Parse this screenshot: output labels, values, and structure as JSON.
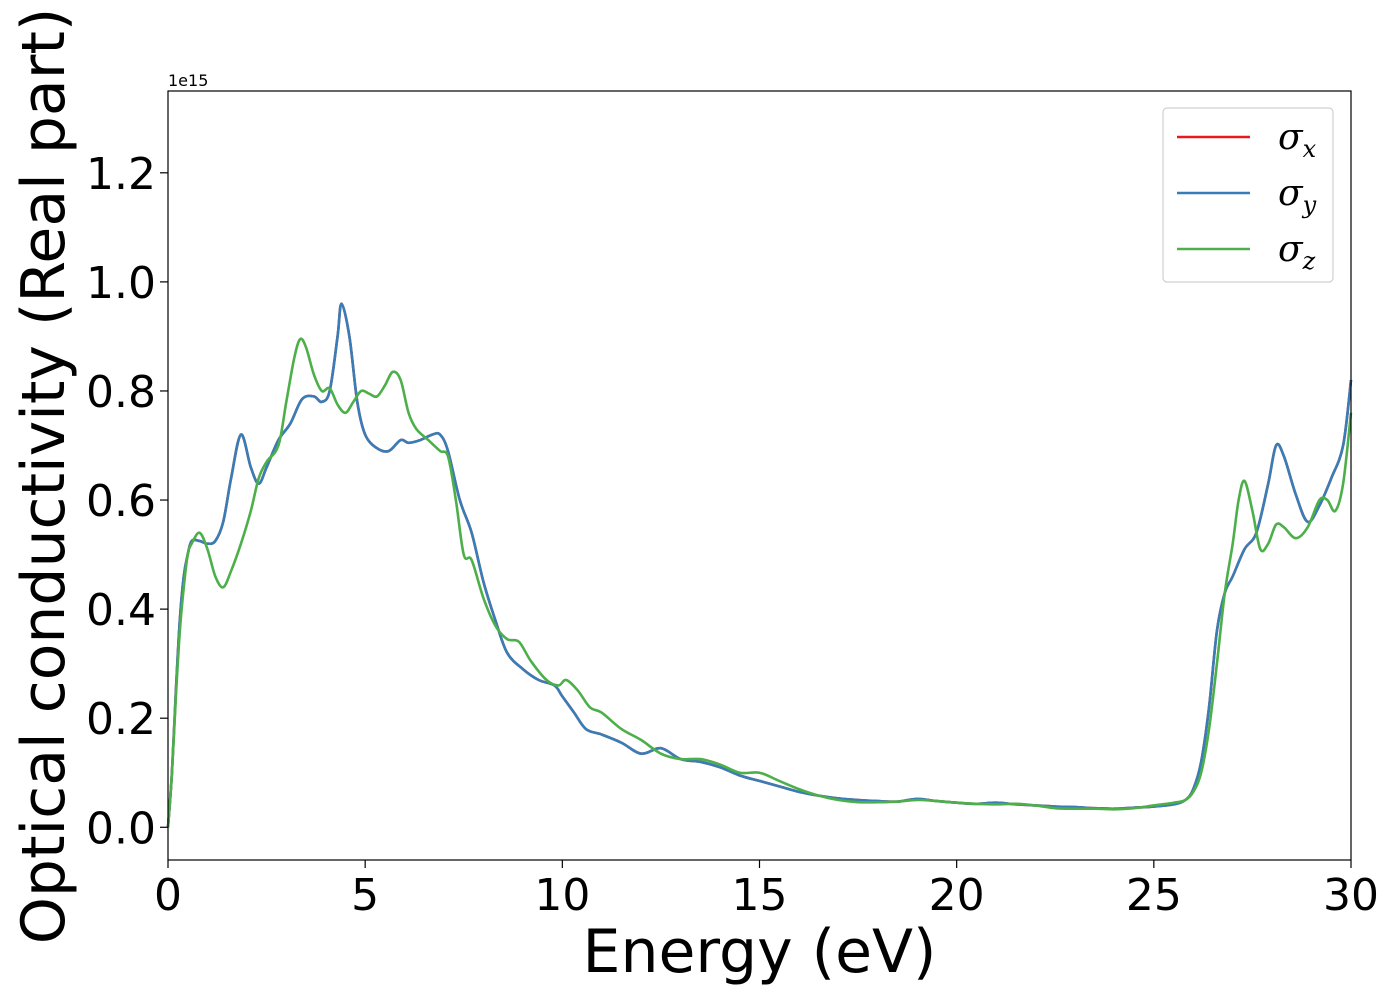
{
  "chart_data": {
    "type": "line",
    "title": "",
    "xlabel": "Energy (eV)",
    "ylabel": "Optical conductivity (Real part)",
    "y_offset_text": "1e15",
    "y_scale": 1000000000000000.0,
    "xlim": [
      0,
      30
    ],
    "ylim": [
      -0.06,
      1.35
    ],
    "xticks": [
      0,
      5,
      10,
      15,
      20,
      25,
      30
    ],
    "xtick_labels": [
      "0",
      "5",
      "10",
      "15",
      "20",
      "25",
      "30"
    ],
    "yticks": [
      0.0,
      0.2,
      0.4,
      0.6,
      0.8,
      1.0,
      1.2
    ],
    "ytick_labels": [
      "0.0",
      "0.2",
      "0.4",
      "0.6",
      "0.8",
      "1.0",
      "1.2"
    ],
    "grid": false,
    "legend_position": "top-right",
    "legend": [
      {
        "symbol": "σ",
        "sub": "x",
        "color": "#e41a1c"
      },
      {
        "symbol": "σ",
        "sub": "y",
        "color": "#377eb8"
      },
      {
        "symbol": "σ",
        "sub": "z",
        "color": "#4daf4a"
      }
    ],
    "series": [
      {
        "color": "#e41a1c",
        "x": [
          0,
          0.1,
          0.2,
          0.3,
          0.4,
          0.5,
          0.6,
          0.8,
          1.0,
          1.2,
          1.4,
          1.6,
          1.85,
          2.1,
          2.3,
          2.5,
          2.8,
          3.1,
          3.4,
          3.7,
          3.9,
          4.1,
          4.3,
          4.4,
          4.6,
          4.8,
          5.0,
          5.3,
          5.6,
          5.9,
          6.1,
          6.4,
          6.7,
          6.9,
          7.1,
          7.4,
          7.7,
          8.0,
          8.3,
          8.6,
          9.0,
          9.4,
          9.8,
          10.0,
          10.3,
          10.6,
          11.0,
          11.5,
          12.0,
          12.5,
          13.0,
          13.5,
          14.0,
          14.5,
          15.0,
          15.5,
          16.0,
          16.5,
          17.0,
          17.5,
          18.0,
          18.5,
          19.0,
          19.5,
          20.0,
          20.5,
          21.0,
          21.5,
          22.0,
          22.5,
          23.0,
          23.5,
          24.0,
          24.5,
          25.0,
          25.5,
          25.8,
          26.0,
          26.2,
          26.4,
          26.6,
          26.8,
          27.0,
          27.3,
          27.6,
          27.9,
          28.1,
          28.3,
          28.6,
          28.9,
          29.2,
          29.5,
          29.8,
          30.0
        ],
        "values": [
          0.0,
          0.1,
          0.25,
          0.38,
          0.46,
          0.5,
          0.525,
          0.525,
          0.52,
          0.525,
          0.56,
          0.64,
          0.72,
          0.66,
          0.63,
          0.66,
          0.71,
          0.74,
          0.785,
          0.79,
          0.78,
          0.8,
          0.9,
          0.96,
          0.9,
          0.78,
          0.72,
          0.695,
          0.69,
          0.71,
          0.705,
          0.71,
          0.72,
          0.72,
          0.69,
          0.6,
          0.54,
          0.45,
          0.38,
          0.32,
          0.29,
          0.27,
          0.26,
          0.24,
          0.21,
          0.18,
          0.17,
          0.155,
          0.135,
          0.145,
          0.125,
          0.12,
          0.11,
          0.095,
          0.085,
          0.075,
          0.065,
          0.058,
          0.053,
          0.05,
          0.048,
          0.047,
          0.052,
          0.048,
          0.045,
          0.043,
          0.045,
          0.042,
          0.04,
          0.038,
          0.037,
          0.035,
          0.034,
          0.036,
          0.038,
          0.042,
          0.05,
          0.07,
          0.12,
          0.22,
          0.36,
          0.43,
          0.46,
          0.51,
          0.54,
          0.63,
          0.7,
          0.68,
          0.61,
          0.56,
          0.59,
          0.64,
          0.7,
          0.82
        ]
      },
      {
        "color": "#377eb8",
        "x": [
          0,
          0.1,
          0.2,
          0.3,
          0.4,
          0.5,
          0.6,
          0.8,
          1.0,
          1.2,
          1.4,
          1.6,
          1.85,
          2.1,
          2.3,
          2.5,
          2.8,
          3.1,
          3.4,
          3.7,
          3.9,
          4.1,
          4.3,
          4.4,
          4.6,
          4.8,
          5.0,
          5.3,
          5.6,
          5.9,
          6.1,
          6.4,
          6.7,
          6.9,
          7.1,
          7.4,
          7.7,
          8.0,
          8.3,
          8.6,
          9.0,
          9.4,
          9.8,
          10.0,
          10.3,
          10.6,
          11.0,
          11.5,
          12.0,
          12.5,
          13.0,
          13.5,
          14.0,
          14.5,
          15.0,
          15.5,
          16.0,
          16.5,
          17.0,
          17.5,
          18.0,
          18.5,
          19.0,
          19.5,
          20.0,
          20.5,
          21.0,
          21.5,
          22.0,
          22.5,
          23.0,
          23.5,
          24.0,
          24.5,
          25.0,
          25.5,
          25.8,
          26.0,
          26.2,
          26.4,
          26.6,
          26.8,
          27.0,
          27.3,
          27.6,
          27.9,
          28.1,
          28.3,
          28.6,
          28.9,
          29.2,
          29.5,
          29.8,
          30.0
        ],
        "values": [
          0.0,
          0.1,
          0.25,
          0.38,
          0.46,
          0.5,
          0.525,
          0.525,
          0.52,
          0.525,
          0.56,
          0.64,
          0.72,
          0.66,
          0.63,
          0.66,
          0.71,
          0.74,
          0.785,
          0.79,
          0.78,
          0.8,
          0.9,
          0.96,
          0.9,
          0.78,
          0.72,
          0.695,
          0.69,
          0.71,
          0.705,
          0.71,
          0.72,
          0.72,
          0.69,
          0.6,
          0.54,
          0.45,
          0.38,
          0.32,
          0.29,
          0.27,
          0.26,
          0.24,
          0.21,
          0.18,
          0.17,
          0.155,
          0.135,
          0.145,
          0.125,
          0.12,
          0.11,
          0.095,
          0.085,
          0.075,
          0.065,
          0.058,
          0.053,
          0.05,
          0.048,
          0.047,
          0.052,
          0.048,
          0.045,
          0.043,
          0.045,
          0.042,
          0.04,
          0.038,
          0.037,
          0.035,
          0.034,
          0.036,
          0.038,
          0.042,
          0.05,
          0.07,
          0.12,
          0.22,
          0.36,
          0.43,
          0.46,
          0.51,
          0.54,
          0.63,
          0.7,
          0.68,
          0.61,
          0.56,
          0.59,
          0.64,
          0.7,
          0.82
        ]
      },
      {
        "color": "#4daf4a",
        "x": [
          0,
          0.1,
          0.2,
          0.3,
          0.4,
          0.5,
          0.6,
          0.8,
          1.0,
          1.2,
          1.4,
          1.6,
          1.85,
          2.1,
          2.3,
          2.5,
          2.8,
          3.0,
          3.2,
          3.35,
          3.5,
          3.7,
          3.9,
          4.1,
          4.3,
          4.5,
          4.7,
          4.9,
          5.1,
          5.3,
          5.5,
          5.7,
          5.9,
          6.1,
          6.3,
          6.6,
          6.9,
          7.1,
          7.3,
          7.5,
          7.7,
          8.0,
          8.3,
          8.6,
          8.9,
          9.2,
          9.6,
          9.9,
          10.1,
          10.4,
          10.7,
          11.0,
          11.5,
          12.0,
          12.5,
          13.0,
          13.5,
          14.0,
          14.5,
          15.0,
          15.5,
          16.0,
          16.5,
          17.0,
          17.5,
          18.0,
          18.5,
          19.0,
          19.5,
          20.0,
          20.5,
          21.0,
          21.5,
          22.0,
          22.5,
          23.0,
          23.5,
          24.0,
          24.5,
          25.0,
          25.5,
          25.8,
          26.0,
          26.2,
          26.4,
          26.6,
          26.8,
          27.0,
          27.15,
          27.3,
          27.5,
          27.7,
          27.9,
          28.1,
          28.3,
          28.6,
          28.9,
          29.2,
          29.4,
          29.6,
          29.8,
          30.0
        ],
        "values": [
          0.0,
          0.1,
          0.24,
          0.36,
          0.44,
          0.5,
          0.52,
          0.54,
          0.51,
          0.46,
          0.44,
          0.47,
          0.52,
          0.58,
          0.64,
          0.67,
          0.7,
          0.78,
          0.86,
          0.895,
          0.88,
          0.83,
          0.8,
          0.805,
          0.775,
          0.76,
          0.78,
          0.8,
          0.795,
          0.79,
          0.81,
          0.835,
          0.82,
          0.76,
          0.73,
          0.71,
          0.69,
          0.68,
          0.6,
          0.5,
          0.49,
          0.42,
          0.37,
          0.345,
          0.34,
          0.305,
          0.27,
          0.26,
          0.27,
          0.25,
          0.22,
          0.21,
          0.18,
          0.16,
          0.135,
          0.125,
          0.125,
          0.115,
          0.1,
          0.1,
          0.085,
          0.07,
          0.058,
          0.05,
          0.046,
          0.046,
          0.047,
          0.05,
          0.048,
          0.045,
          0.043,
          0.042,
          0.043,
          0.04,
          0.035,
          0.034,
          0.034,
          0.033,
          0.035,
          0.04,
          0.045,
          0.05,
          0.065,
          0.1,
          0.18,
          0.3,
          0.43,
          0.52,
          0.6,
          0.635,
          0.58,
          0.51,
          0.52,
          0.555,
          0.55,
          0.53,
          0.55,
          0.6,
          0.6,
          0.58,
          0.63,
          0.76
        ]
      }
    ]
  }
}
